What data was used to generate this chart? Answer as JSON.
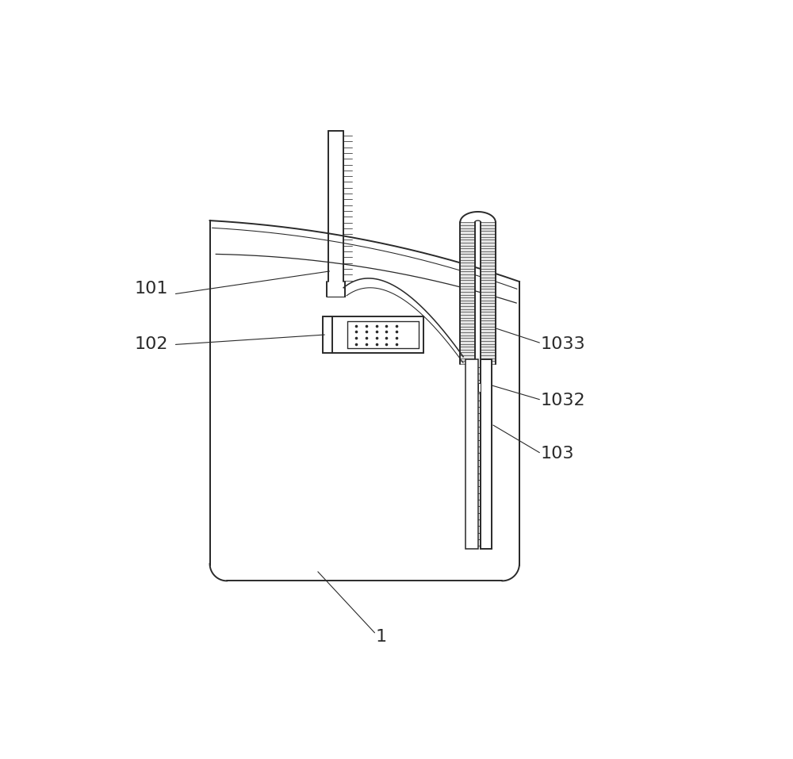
{
  "bg_color": "#ffffff",
  "line_color": "#2a2a2a",
  "label_101": "101",
  "label_102": "102",
  "label_1033": "1033",
  "label_1032": "1032",
  "label_103": "103",
  "label_1": "1",
  "figsize": [
    10.0,
    9.57
  ],
  "dpi": 100,
  "font_size": 16
}
